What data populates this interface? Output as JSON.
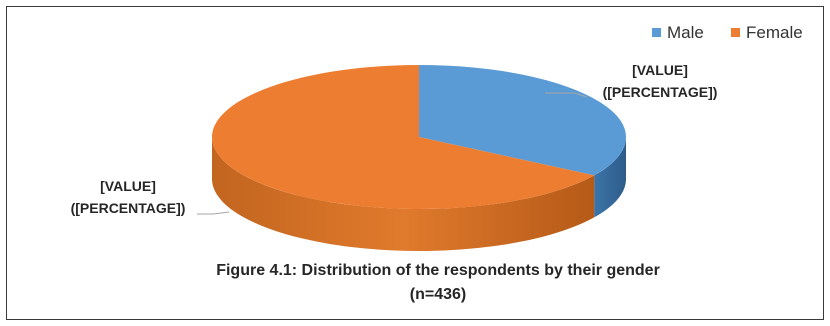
{
  "chart_data": {
    "type": "pie",
    "style": "3d",
    "title": "Figure 4.1: Distribution of the respondents by their gender",
    "subtitle": "(n=436)",
    "legend_position": "top-right",
    "series": [
      {
        "name": "Male",
        "value": 148,
        "color": "#5b9bd5"
      },
      {
        "name": "Female",
        "value": 288,
        "color": "#ed7d31"
      }
    ],
    "data_labels": [
      {
        "series": "Male",
        "line1": "[VALUE]",
        "line2": "([PERCENTAGE])"
      },
      {
        "series": "Female",
        "line1": "[VALUE]",
        "line2": "([PERCENTAGE])"
      }
    ]
  }
}
